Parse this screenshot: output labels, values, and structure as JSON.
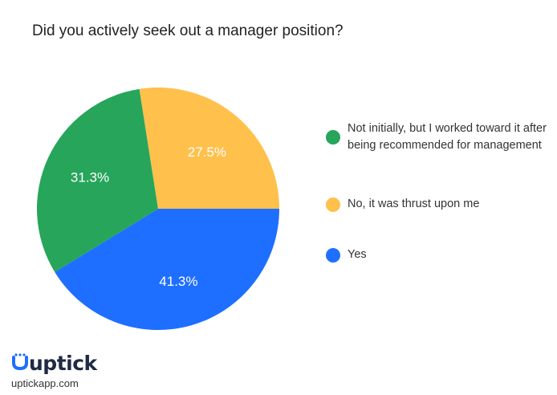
{
  "title": "Did you actively seek out a manager position?",
  "chart_data": {
    "type": "pie",
    "title": "Did you actively seek out a manager position?",
    "series": [
      {
        "name": "Not initially, but I worked toward it after being recommended for management",
        "value": 31.3,
        "label": "31.3%",
        "color": "#27a55a"
      },
      {
        "name": "No, it was thrust upon me",
        "value": 27.5,
        "label": "27.5%",
        "color": "#ffc04c"
      },
      {
        "name": "Yes",
        "value": 41.3,
        "label": "41.3%",
        "color": "#1e6fff"
      }
    ],
    "legend_position": "right"
  },
  "brand": {
    "logo_text": "uptick",
    "url": "uptickapp.com"
  }
}
